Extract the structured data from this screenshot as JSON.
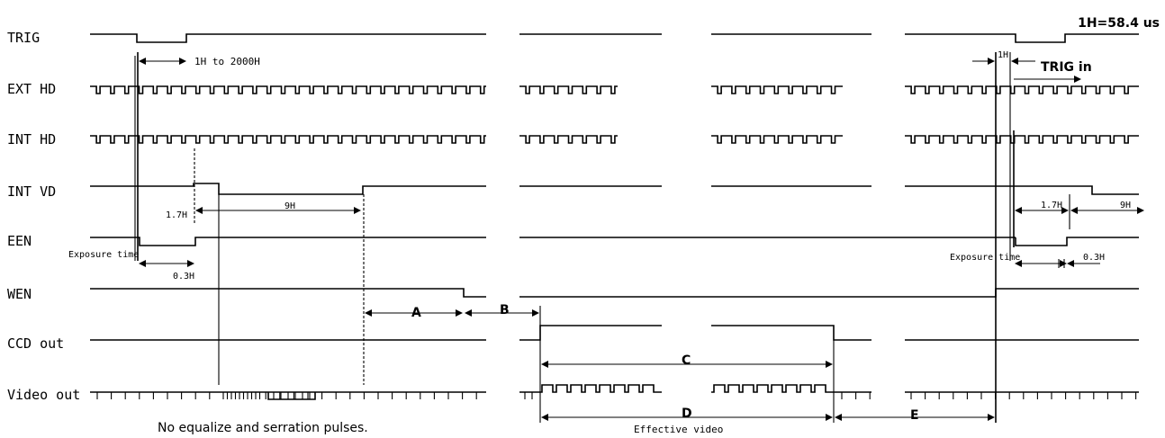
{
  "header": {
    "unit": "1H=58.4 us"
  },
  "signals": {
    "trig": "TRIG",
    "ext_hd": "EXT HD",
    "int_hd": "INT HD",
    "int_vd": "INT VD",
    "een": "EEN",
    "wen": "WEN",
    "ccd_out": "CCD out",
    "video_out": "Video out"
  },
  "annotations": {
    "trig_range": "1H to 2000H",
    "t_1_7h_left": "1.7H",
    "t_9h_left": "9H",
    "exposure_left": "Exposure time",
    "t_0_3h_left": "0.3H",
    "seg_a": "A",
    "seg_b": "B",
    "seg_c": "C",
    "seg_d": "D",
    "seg_e": "E",
    "effective_video": "Effective video",
    "t_1h_right": "1H",
    "trig_in": "TRIG in",
    "t_1_7h_right": "1.7H",
    "t_9h_right": "9H",
    "exposure_right": "Exposure time",
    "t_0_3h_right": "0.3H",
    "footnote": "No equalize and serration pulses."
  }
}
